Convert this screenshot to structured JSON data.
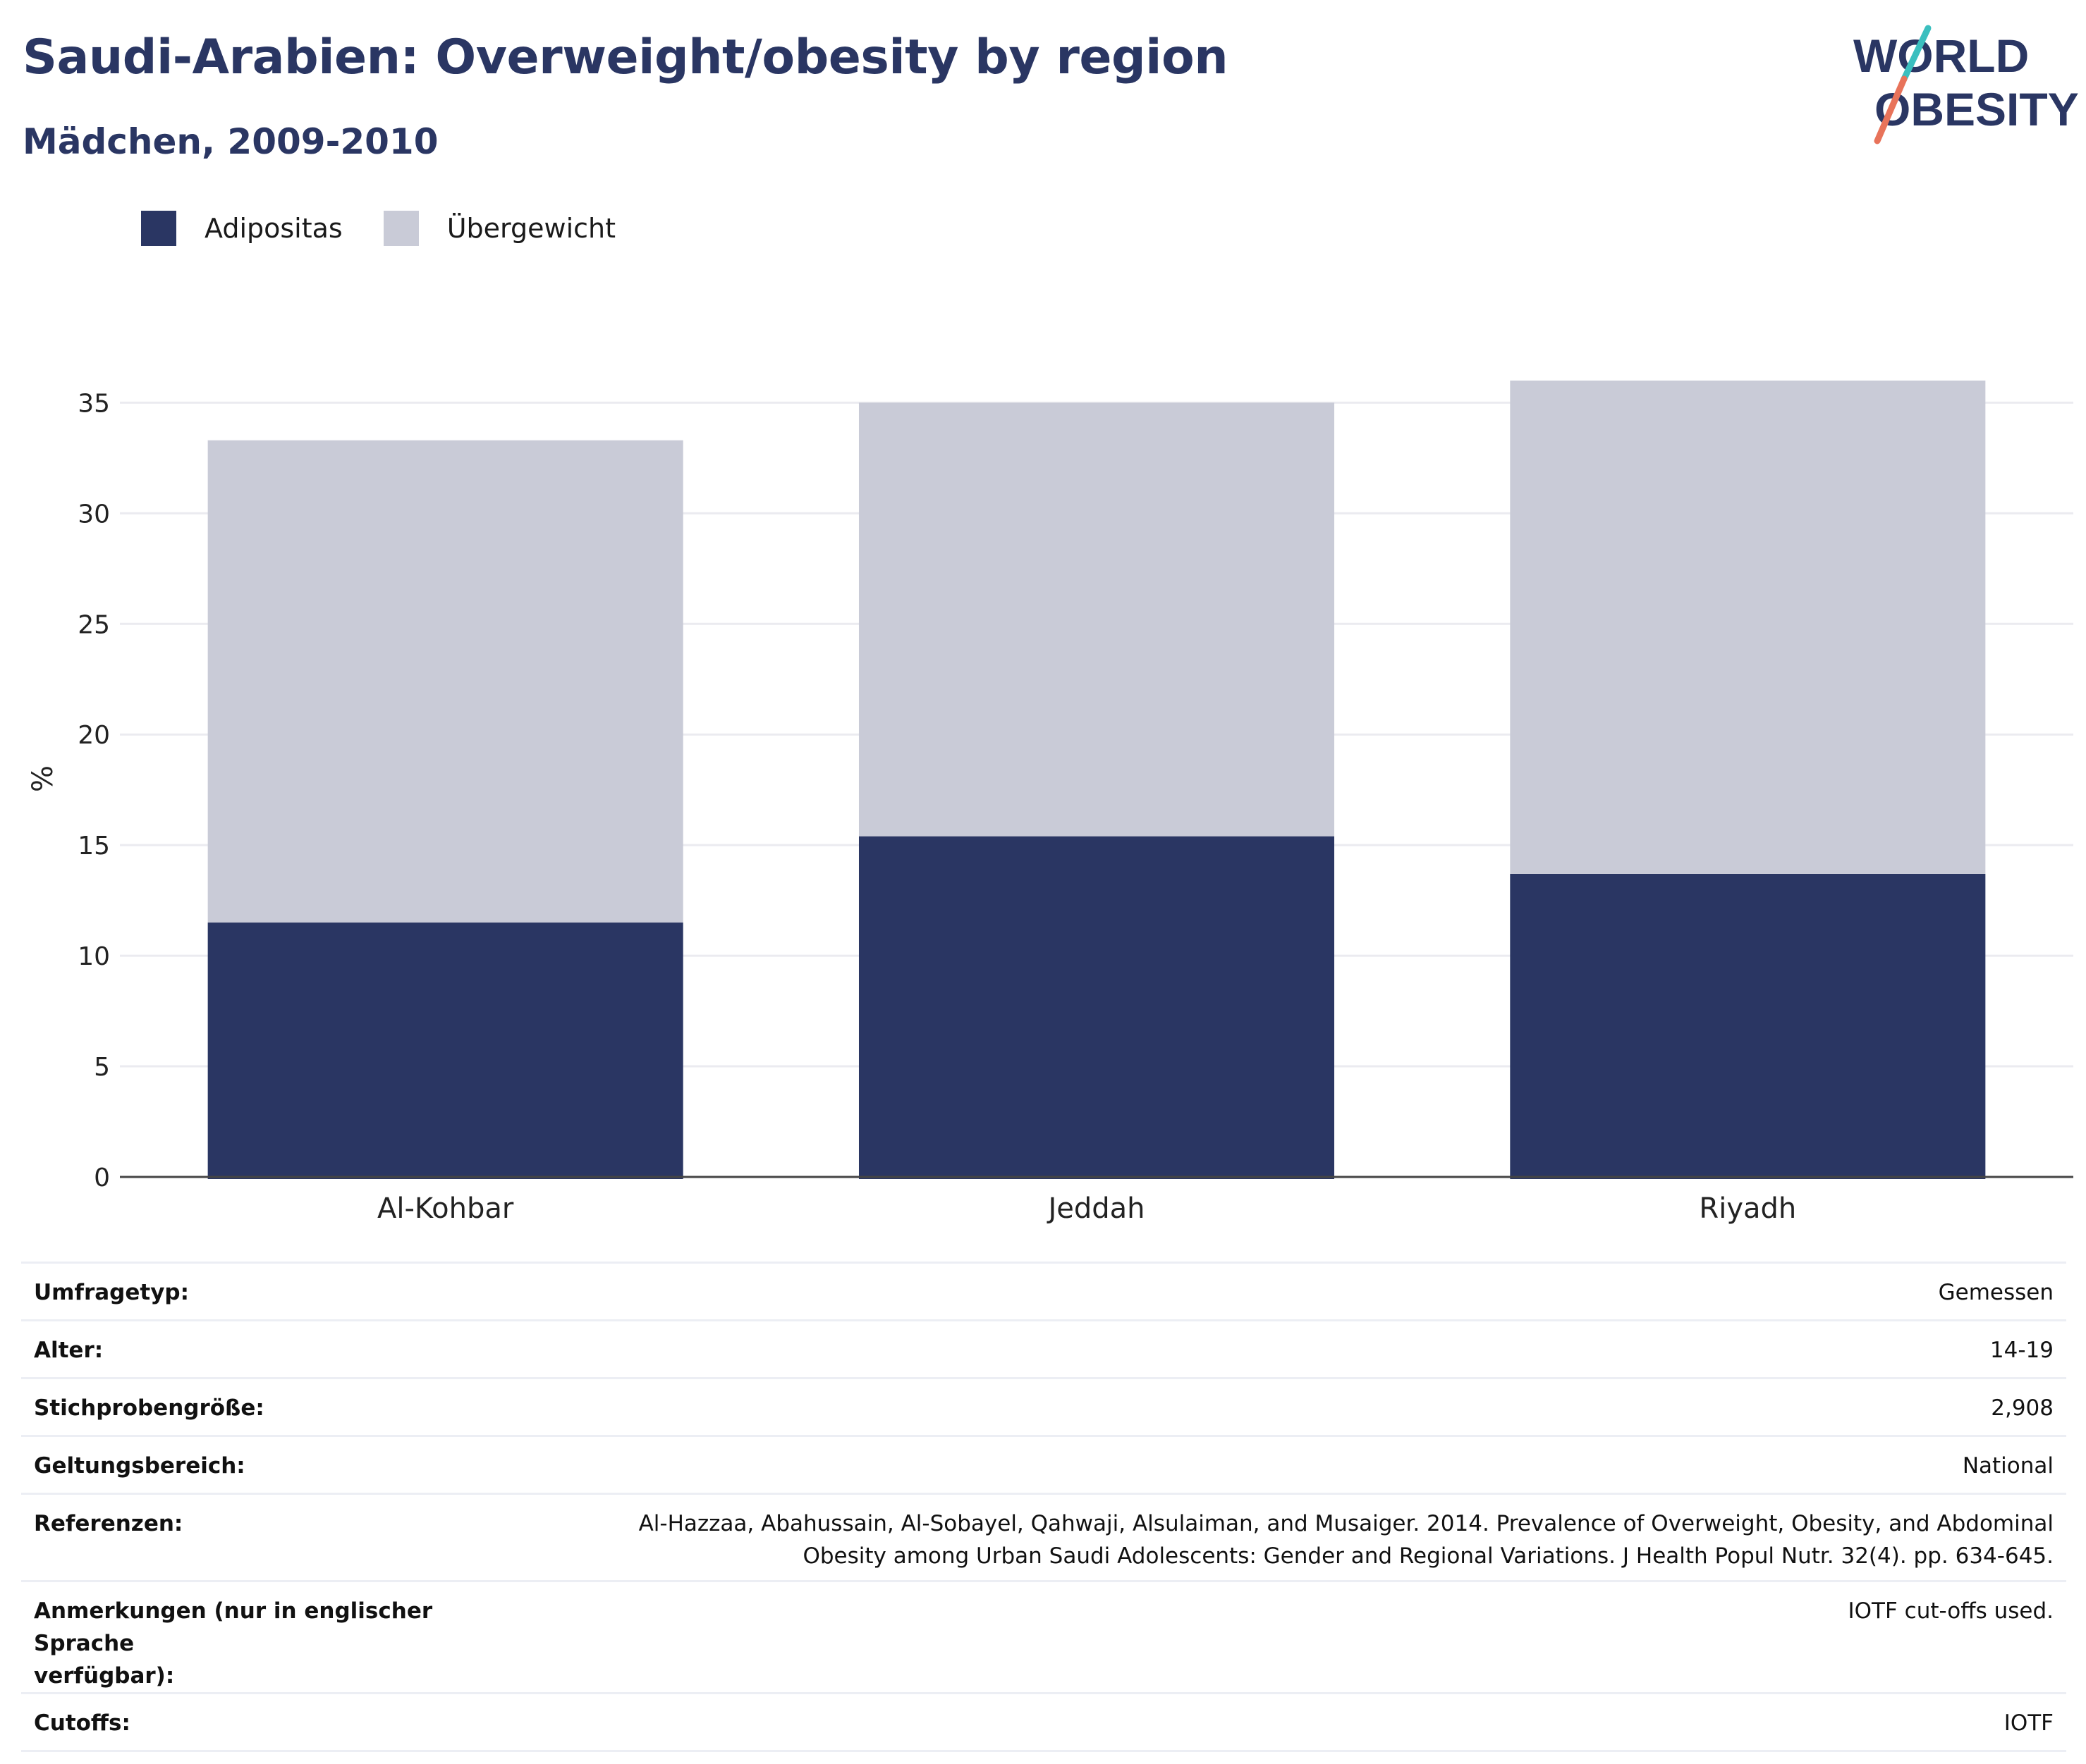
{
  "header": {
    "title": "Saudi-Arabien: Overweight/obesity by region",
    "subtitle": "Mädchen, 2009-2010"
  },
  "logo": {
    "line1": "WORLD",
    "line2": "OBESITY",
    "slash_colors": [
      "#3bbfbf",
      "#e8735a"
    ]
  },
  "colors": {
    "obesity": "#2a3663",
    "overweight": "#c9cbd7",
    "grid": "#ebebf0",
    "axis": "#444444",
    "title": "#2a3663"
  },
  "chart_data": {
    "type": "bar",
    "stacked": true,
    "categories": [
      "Al-Kohbar",
      "Jeddah",
      "Riyadh"
    ],
    "series": [
      {
        "name": "Adipositas",
        "values": [
          11.5,
          15.4,
          13.7
        ]
      },
      {
        "name": "Übergewicht",
        "values": [
          21.8,
          19.6,
          22.3
        ]
      }
    ],
    "ylabel": "%",
    "ylim": [
      0,
      36
    ],
    "yticks": [
      0,
      5,
      10,
      15,
      20,
      25,
      30,
      35
    ],
    "grid": true,
    "legend": "top-left"
  },
  "meta": [
    {
      "key": "Umfragetyp:",
      "value": "Gemessen"
    },
    {
      "key": "Alter:",
      "value": "14-19"
    },
    {
      "key": "Stichprobengröße:",
      "value": "2,908"
    },
    {
      "key": "Geltungsbereich:",
      "value": "National"
    },
    {
      "key": "Referenzen:",
      "value_lines": [
        "Al-Hazzaa, Abahussain, Al-Sobayel, Qahwaji, Alsulaiman, and Musaiger. 2014. Prevalence of Overweight, Obesity, and Abdominal",
        "Obesity among Urban Saudi Adolescents: Gender and Regional Variations. J Health Popul Nutr. 32(4). pp. 634-645."
      ]
    },
    {
      "key_lines": [
        "Anmerkungen (nur in englischer Sprache",
        "verfügbar):"
      ],
      "value": "IOTF cut-offs used."
    },
    {
      "key": "Cutoffs:",
      "value": "IOTF"
    }
  ]
}
